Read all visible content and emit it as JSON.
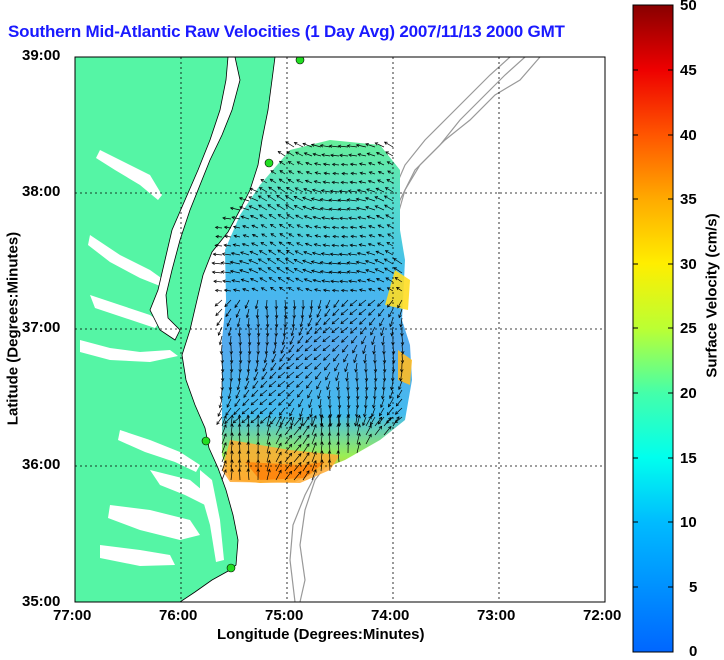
{
  "title": "Southern Mid-Atlantic Raw Velocities (1 Day Avg) 2007/11/13 2000 GMT",
  "axes": {
    "xlabel": "Longitude (Degrees:Minutes)",
    "ylabel": "Latitude (Degrees:Minutes)",
    "x_ticks": [
      "77:00",
      "76:00",
      "75:00",
      "74:00",
      "73:00",
      "72:00"
    ],
    "y_ticks": [
      "39:00",
      "38:00",
      "37:00",
      "36:00",
      "35:00"
    ],
    "xlim": [
      -77,
      -72
    ],
    "ylim": [
      35,
      39
    ],
    "grid": true
  },
  "colorbar": {
    "label": "Surface Velocity (cm/s)",
    "ticks": [
      "50",
      "45",
      "40",
      "35",
      "30",
      "25",
      "20",
      "15",
      "10",
      "5",
      "0"
    ],
    "range": [
      0,
      50
    ],
    "colormap": "jet"
  },
  "colors": {
    "land": "#55f5a5",
    "water": "#ffffff",
    "title": "#1a1aff",
    "bathymetry": "#999999",
    "station": "#22dd22"
  },
  "chart_data": {
    "type": "heatmap",
    "title": "Southern Mid-Atlantic Raw Velocities (1 Day Avg) 2007/11/13 2000 GMT",
    "xlabel": "Longitude (Degrees:Minutes)",
    "ylabel": "Latitude (Degrees:Minutes)",
    "units": "cm/s",
    "field_extent": {
      "lon": [
        -75.6,
        -74.0
      ],
      "lat": [
        35.9,
        38.4
      ]
    },
    "stations": [
      {
        "lon": -74.9,
        "lat": 39.0
      },
      {
        "lon": -75.15,
        "lat": 38.22
      },
      {
        "lon": -75.7,
        "lat": 36.18
      },
      {
        "lon": -75.45,
        "lat": 35.25
      }
    ]
  }
}
